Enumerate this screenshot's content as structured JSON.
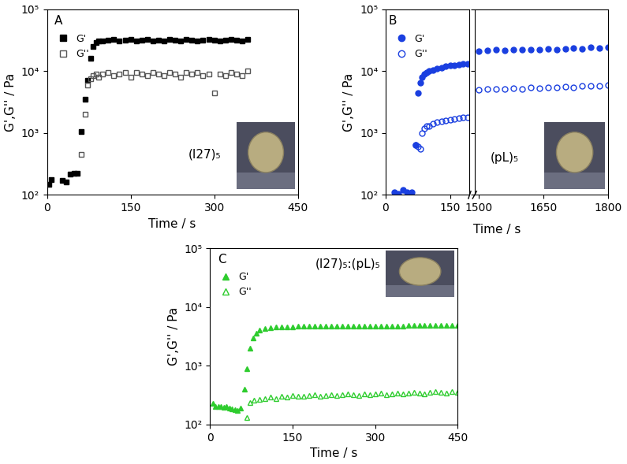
{
  "chart_data": [
    {
      "type": "scatter",
      "title": "A",
      "annotation": "(I27)₅",
      "x_label": "Time / s",
      "y_label": "G',G'' / Pa",
      "log": "y",
      "legend": "upper left",
      "xlim": [
        0,
        450
      ],
      "xticks": [
        0,
        150,
        300,
        450
      ],
      "ylim": [
        100,
        100000
      ],
      "yticks": [
        {
          "value": 100,
          "label": "10²"
        },
        {
          "value": 1000,
          "label": "10³"
        },
        {
          "value": 10000,
          "label": "10⁴"
        },
        {
          "value": 100000,
          "label": "10⁵"
        }
      ],
      "series": [
        {
          "name": "G'",
          "color": "#000000",
          "marker": "square",
          "x": [
            3,
            8,
            28,
            35,
            42,
            48,
            55,
            62,
            68,
            72,
            78,
            83,
            88,
            93,
            100,
            110,
            120,
            130,
            140,
            150,
            160,
            170,
            180,
            190,
            200,
            210,
            220,
            230,
            240,
            250,
            260,
            270,
            280,
            290,
            300,
            310,
            320,
            330,
            340,
            350,
            360
          ],
          "values": [
            150,
            175,
            170,
            160,
            215,
            225,
            220,
            1050,
            3500,
            7000,
            16000,
            25000,
            29000,
            31000,
            31000,
            32000,
            33000,
            31000,
            32000,
            33000,
            31000,
            32000,
            33000,
            31000,
            32000,
            31000,
            33000,
            32000,
            31000,
            33000,
            32000,
            31000,
            32000,
            33000,
            32000,
            31000,
            32000,
            33000,
            32000,
            31000,
            33000
          ]
        },
        {
          "name": "G''",
          "color": "#555555",
          "marker": "open square",
          "x": [
            62,
            68,
            72,
            78,
            83,
            88,
            93,
            100,
            110,
            120,
            130,
            140,
            150,
            160,
            170,
            180,
            190,
            200,
            210,
            220,
            230,
            240,
            250,
            260,
            270,
            280,
            290,
            300,
            310,
            320,
            330,
            340,
            350,
            360
          ],
          "values": [
            450,
            2000,
            6000,
            7500,
            8500,
            9000,
            8000,
            9000,
            9500,
            8500,
            9000,
            9500,
            8000,
            9500,
            9000,
            8500,
            9500,
            9000,
            8500,
            9500,
            9000,
            8000,
            9500,
            9000,
            9500,
            8500,
            9000,
            4500,
            9000,
            8500,
            9500,
            9000,
            8500,
            10000
          ]
        }
      ]
    },
    {
      "type": "scatter",
      "title": "B",
      "annotation": "(pL)₅",
      "x_label": "Time / s",
      "y_label": "G',G'' / Pa",
      "log": "y",
      "legend": "upper left",
      "segments": [
        {
          "xlim": [
            0,
            195
          ],
          "xticks": [
            0,
            150
          ]
        },
        {
          "xlim": [
            1490,
            1800
          ],
          "xticks": [
            1500,
            1650,
            1800
          ]
        }
      ],
      "ylim": [
        100,
        100000
      ],
      "yticks": [
        {
          "value": 100,
          "label": "10²"
        },
        {
          "value": 1000,
          "label": "10³"
        },
        {
          "value": 10000,
          "label": "10⁴"
        },
        {
          "value": 100000,
          "label": "10⁵"
        }
      ],
      "series": [
        {
          "name": "G'",
          "color": "#1a3fe0",
          "marker": "circle",
          "x": [
            20,
            30,
            40,
            50,
            60,
            70,
            75,
            80,
            85,
            90,
            95,
            100,
            110,
            120,
            130,
            140,
            150,
            160,
            170,
            180,
            190,
            1500,
            1520,
            1540,
            1560,
            1580,
            1600,
            1620,
            1640,
            1660,
            1680,
            1700,
            1720,
            1740,
            1760,
            1780,
            1800
          ],
          "values": [
            110,
            105,
            120,
            110,
            112,
            650,
            4500,
            6500,
            8000,
            9000,
            9500,
            10000,
            10500,
            11000,
            11500,
            12000,
            12300,
            12500,
            12800,
            13000,
            13000,
            21000,
            21500,
            22000,
            21500,
            22000,
            22500,
            22000,
            22500,
            23000,
            22500,
            23000,
            23500,
            23000,
            24000,
            23500,
            24000
          ]
        },
        {
          "name": "G''",
          "color": "#1a3fe0",
          "marker": "open circle",
          "x": [
            70,
            75,
            80,
            85,
            90,
            95,
            100,
            110,
            120,
            130,
            140,
            150,
            160,
            170,
            180,
            190,
            1500,
            1520,
            1540,
            1560,
            1580,
            1600,
            1620,
            1640,
            1660,
            1680,
            1700,
            1720,
            1740,
            1760,
            1780,
            1800
          ],
          "values": [
            650,
            600,
            550,
            1000,
            1200,
            1300,
            1300,
            1400,
            1500,
            1550,
            1600,
            1650,
            1700,
            1750,
            1800,
            1800,
            5000,
            5100,
            5200,
            5100,
            5300,
            5200,
            5400,
            5300,
            5500,
            5400,
            5600,
            5500,
            5700,
            5800,
            5800,
            6000
          ]
        }
      ]
    },
    {
      "type": "scatter",
      "title": "C",
      "annotation": "(I27)₅:(pL)₅",
      "x_label": "Time / s",
      "y_label": "G',G'' / Pa",
      "log": "y",
      "legend": "upper left",
      "xlim": [
        0,
        450
      ],
      "xticks": [
        0,
        150,
        300,
        450
      ],
      "ylim": [
        100,
        100000
      ],
      "yticks": [
        {
          "value": 100,
          "label": "10²"
        },
        {
          "value": 1000,
          "label": "10³"
        },
        {
          "value": 10000,
          "label": "10⁴"
        },
        {
          "value": 100000,
          "label": "10⁵"
        }
      ],
      "series": [
        {
          "name": "G'",
          "color": "#2ecc2e",
          "marker": "triangle",
          "x": [
            5,
            10,
            15,
            20,
            25,
            30,
            35,
            40,
            45,
            50,
            55,
            62,
            67,
            72,
            78,
            84,
            90,
            100,
            110,
            120,
            130,
            140,
            150,
            160,
            170,
            180,
            190,
            200,
            210,
            220,
            230,
            240,
            250,
            260,
            270,
            280,
            290,
            300,
            310,
            320,
            330,
            340,
            350,
            360,
            370,
            380,
            390,
            400,
            410,
            420,
            430,
            440,
            450
          ],
          "values": [
            230,
            200,
            205,
            200,
            195,
            200,
            190,
            185,
            180,
            175,
            190,
            400,
            900,
            2000,
            3000,
            3600,
            4000,
            4300,
            4450,
            4550,
            4600,
            4650,
            4650,
            4700,
            4700,
            4700,
            4700,
            4750,
            4750,
            4750,
            4750,
            4750,
            4800,
            4800,
            4800,
            4800,
            4800,
            4800,
            4800,
            4800,
            4800,
            4800,
            4800,
            4850,
            4850,
            4850,
            4850,
            4850,
            4850,
            4850,
            4850,
            4900,
            4900
          ]
        },
        {
          "name": "G''",
          "color": "#2ecc2e",
          "marker": "open triangle",
          "x": [
            67,
            72,
            80,
            90,
            100,
            110,
            120,
            130,
            140,
            150,
            160,
            170,
            180,
            190,
            200,
            210,
            220,
            230,
            240,
            250,
            260,
            270,
            280,
            290,
            300,
            310,
            320,
            330,
            340,
            350,
            360,
            370,
            380,
            390,
            400,
            410,
            420,
            430,
            440,
            450
          ],
          "values": [
            130,
            240,
            260,
            270,
            280,
            290,
            280,
            300,
            290,
            310,
            300,
            300,
            310,
            320,
            300,
            310,
            320,
            310,
            320,
            330,
            320,
            310,
            330,
            320,
            330,
            340,
            320,
            330,
            340,
            330,
            340,
            350,
            340,
            330,
            350,
            360,
            350,
            340,
            360,
            350
          ]
        }
      ]
    }
  ]
}
